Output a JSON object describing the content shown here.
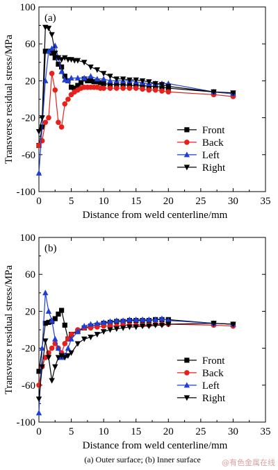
{
  "caption": "(a) Outer surface; (b) Inner surface",
  "watermark": "@有色金属在线",
  "chart_data": [
    {
      "type": "line",
      "panel_label": "(a)",
      "xlabel": "Distance from weld centerline/mm",
      "ylabel": "Transverse residual stress/MPa",
      "xlim": [
        0,
        35
      ],
      "ylim": [
        -100,
        100
      ],
      "xticks": [
        0,
        5,
        10,
        15,
        20,
        25,
        30,
        35
      ],
      "yticks": [
        -100,
        -60,
        -20,
        20,
        60,
        100
      ],
      "legend_position": "lower-right",
      "series": [
        {
          "name": "Front",
          "color": "#000000",
          "marker": "square",
          "x": [
            0,
            0.5,
            1,
            1.5,
            2,
            2.5,
            3,
            3.5,
            4,
            4.5,
            5,
            5.5,
            6,
            6.5,
            7,
            7.5,
            8,
            8.5,
            9,
            9.5,
            10,
            11,
            12,
            13,
            14,
            15,
            16,
            17,
            18,
            19,
            20,
            27,
            30
          ],
          "y": [
            -50,
            -30,
            52,
            52,
            50,
            45,
            38,
            35,
            25,
            20,
            13,
            12,
            15,
            18,
            22,
            20,
            20,
            19,
            19,
            18,
            17,
            16,
            16,
            16,
            15,
            15,
            15,
            14,
            14,
            13,
            12,
            8,
            6
          ]
        },
        {
          "name": "Back",
          "color": "#e8201c",
          "marker": "circle",
          "x": [
            0,
            0.5,
            1,
            1.5,
            2,
            2.5,
            3,
            3.5,
            4,
            4.5,
            5,
            5.5,
            6,
            6.5,
            7,
            7.5,
            8,
            8.5,
            9,
            9.5,
            10,
            11,
            12,
            13,
            14,
            15,
            16,
            17,
            18,
            19,
            20,
            27,
            30
          ],
          "y": [
            -50,
            -45,
            -25,
            -20,
            28,
            10,
            -25,
            -30,
            -5,
            0,
            5,
            8,
            10,
            12,
            13,
            13,
            13,
            13,
            13,
            12,
            12,
            12,
            12,
            12,
            12,
            12,
            11,
            10,
            10,
            9,
            8,
            5,
            3
          ]
        },
        {
          "name": "Left",
          "color": "#1f3fd8",
          "marker": "triangle-up",
          "x": [
            0,
            1,
            1.5,
            2,
            2.5,
            3,
            3.5,
            4,
            4.5,
            5,
            6,
            7,
            8,
            9,
            10,
            11,
            12,
            13,
            14,
            15,
            16,
            17,
            18,
            19,
            20,
            27,
            30
          ],
          "y": [
            -80,
            20,
            52,
            55,
            58,
            45,
            30,
            21,
            20,
            23,
            23,
            23,
            25,
            22,
            22,
            20,
            20,
            20,
            20,
            19,
            18,
            17,
            17,
            17,
            17,
            8,
            6
          ]
        },
        {
          "name": "Right",
          "color": "#000000",
          "marker": "triangle-down",
          "x": [
            0,
            0.5,
            1,
            1.5,
            2,
            2.5,
            3,
            3.5,
            4,
            4.5,
            5,
            5.5,
            6,
            7,
            8,
            9,
            10,
            11,
            12,
            13,
            14,
            15,
            16,
            17,
            18,
            19,
            20,
            27,
            30
          ],
          "y": [
            -35,
            -20,
            78,
            77,
            70,
            50,
            45,
            43,
            45,
            43,
            43,
            42,
            42,
            40,
            35,
            32,
            28,
            25,
            22,
            22,
            21,
            21,
            20,
            19,
            17,
            16,
            14,
            8,
            7
          ]
        }
      ]
    },
    {
      "type": "line",
      "panel_label": "(b)",
      "xlabel": "Distance from weld centerline/mm",
      "ylabel": "Transverse residual stress/MPa",
      "xlim": [
        0,
        35
      ],
      "ylim": [
        -100,
        100
      ],
      "xticks": [
        0,
        5,
        10,
        15,
        20,
        25,
        30,
        35
      ],
      "yticks": [
        -100,
        -60,
        -20,
        20,
        60,
        100
      ],
      "legend_position": "lower-right",
      "series": [
        {
          "name": "Front",
          "color": "#000000",
          "marker": "square",
          "x": [
            0,
            1,
            1.5,
            2,
            2.5,
            3,
            3.5,
            4,
            4.5,
            5,
            6,
            7,
            8,
            9,
            10,
            11,
            12,
            13,
            14,
            15,
            16,
            17,
            18,
            19,
            20,
            27,
            30
          ],
          "y": [
            -45,
            7,
            8,
            9,
            12,
            17,
            21,
            5,
            -10,
            -5,
            -2,
            2,
            4,
            5,
            7,
            8,
            9,
            9,
            10,
            10,
            10,
            10,
            11,
            11,
            11,
            7,
            6
          ]
        },
        {
          "name": "Back",
          "color": "#e8201c",
          "marker": "circle",
          "x": [
            0,
            0.5,
            1,
            1.5,
            2,
            2.5,
            3,
            3.5,
            4,
            4.5,
            5,
            6,
            7,
            8,
            9,
            10,
            11,
            12,
            13,
            14,
            15,
            16,
            17,
            18,
            19,
            20,
            27,
            30
          ],
          "y": [
            -60,
            -40,
            -30,
            -25,
            -20,
            -15,
            -20,
            -25,
            -15,
            -10,
            -5,
            0,
            2,
            2,
            3,
            4,
            4,
            4,
            5,
            5,
            5,
            5,
            5,
            6,
            6,
            6,
            5,
            4
          ]
        },
        {
          "name": "Left",
          "color": "#1f3fd8",
          "marker": "triangle-up",
          "x": [
            0,
            0.5,
            1,
            1.5,
            2,
            2.5,
            3,
            3.5,
            4,
            4.5,
            5,
            6,
            7,
            8,
            9,
            10,
            11,
            12,
            13,
            14,
            15,
            16,
            17,
            18,
            19,
            20,
            27,
            30
          ],
          "y": [
            -90,
            -20,
            40,
            20,
            10,
            -10,
            -20,
            -30,
            -28,
            -20,
            -10,
            -2,
            4,
            6,
            7,
            8,
            9,
            10,
            10,
            11,
            11,
            11,
            11,
            11,
            12,
            10,
            7,
            6
          ]
        },
        {
          "name": "Right",
          "color": "#000000",
          "marker": "triangle-down",
          "x": [
            0,
            0.5,
            1,
            1.5,
            2,
            2.5,
            3,
            3.5,
            4,
            4.5,
            5,
            6,
            7,
            8,
            9,
            10,
            11,
            12,
            13,
            14,
            15,
            16,
            17,
            18,
            19,
            20,
            27,
            30
          ],
          "y": [
            -75,
            -40,
            -12,
            -30,
            -55,
            -40,
            -30,
            -28,
            -30,
            -28,
            -25,
            -15,
            -10,
            -8,
            -5,
            -2,
            0,
            1,
            2,
            3,
            3,
            4,
            4,
            5,
            5,
            6,
            7,
            6
          ]
        }
      ]
    }
  ]
}
